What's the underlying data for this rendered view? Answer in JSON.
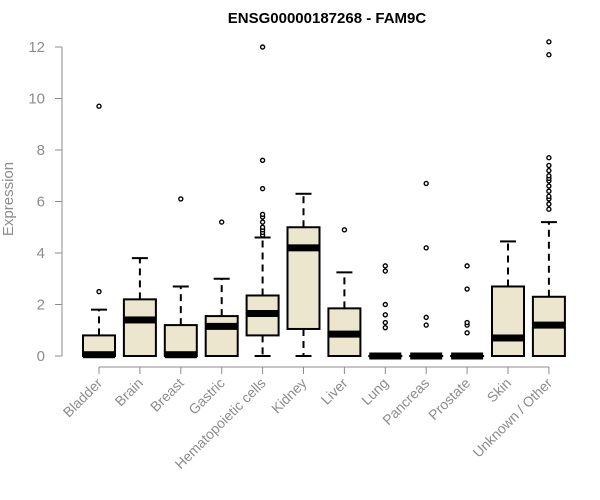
{
  "chart_data": {
    "type": "box",
    "title": "ENSG00000187268 - FAM9C",
    "ylabel": "Expression",
    "xlabel": "",
    "ylim": [
      0,
      12
    ],
    "yticks": [
      0,
      2,
      4,
      6,
      8,
      10,
      12
    ],
    "box_fill": "#ede6cf",
    "categories": [
      "Bladder",
      "Brain",
      "Breast",
      "Gastric",
      "Hematopoietic cells",
      "Kidney",
      "Liver",
      "Lung",
      "Pancreas",
      "Prostate",
      "Skin",
      "Unknown / Other"
    ],
    "boxes": [
      {
        "whisker_low": 0,
        "q1": 0,
        "median": 0.05,
        "q3": 0.8,
        "whisker_high": 1.8,
        "outliers": [
          2.5,
          9.7
        ]
      },
      {
        "whisker_low": 0,
        "q1": 0,
        "median": 1.4,
        "q3": 2.2,
        "whisker_high": 3.8,
        "outliers": []
      },
      {
        "whisker_low": 0,
        "q1": 0,
        "median": 0.05,
        "q3": 1.2,
        "whisker_high": 2.7,
        "outliers": [
          6.1
        ]
      },
      {
        "whisker_low": 0,
        "q1": 0,
        "median": 1.15,
        "q3": 1.55,
        "whisker_high": 3.0,
        "outliers": [
          5.2
        ]
      },
      {
        "whisker_low": 0,
        "q1": 0.8,
        "median": 1.65,
        "q3": 2.35,
        "whisker_high": 4.6,
        "outliers": [
          4.7,
          4.8,
          4.9,
          5.0,
          5.2,
          5.4,
          5.5,
          6.5,
          7.6,
          12.0
        ]
      },
      {
        "whisker_low": 0,
        "q1": 1.05,
        "median": 4.2,
        "q3": 5.0,
        "whisker_high": 6.3,
        "outliers": []
      },
      {
        "whisker_low": 0,
        "q1": 0,
        "median": 0.85,
        "q3": 1.85,
        "whisker_high": 3.25,
        "outliers": [
          4.9
        ]
      },
      {
        "whisker_low": 0,
        "q1": 0,
        "median": 0,
        "q3": 0,
        "whisker_high": 0,
        "outliers": [
          1.1,
          1.3,
          1.6,
          2.0,
          3.3,
          3.5
        ]
      },
      {
        "whisker_low": 0,
        "q1": 0,
        "median": 0,
        "q3": 0,
        "whisker_high": 0,
        "outliers": [
          1.2,
          1.5,
          4.2,
          6.7
        ]
      },
      {
        "whisker_low": 0,
        "q1": 0,
        "median": 0,
        "q3": 0,
        "whisker_high": 0,
        "outliers": [
          0.9,
          1.2,
          1.3,
          2.6,
          3.5
        ]
      },
      {
        "whisker_low": 0,
        "q1": 0,
        "median": 0.7,
        "q3": 2.7,
        "whisker_high": 4.45,
        "outliers": []
      },
      {
        "whisker_low": 0,
        "q1": 0,
        "median": 1.2,
        "q3": 2.3,
        "whisker_high": 5.2,
        "outliers": [
          5.7,
          5.9,
          6.1,
          6.2,
          6.4,
          6.6,
          6.8,
          6.9,
          7.0,
          7.2,
          7.4,
          7.7,
          11.7,
          12.2
        ]
      }
    ]
  }
}
